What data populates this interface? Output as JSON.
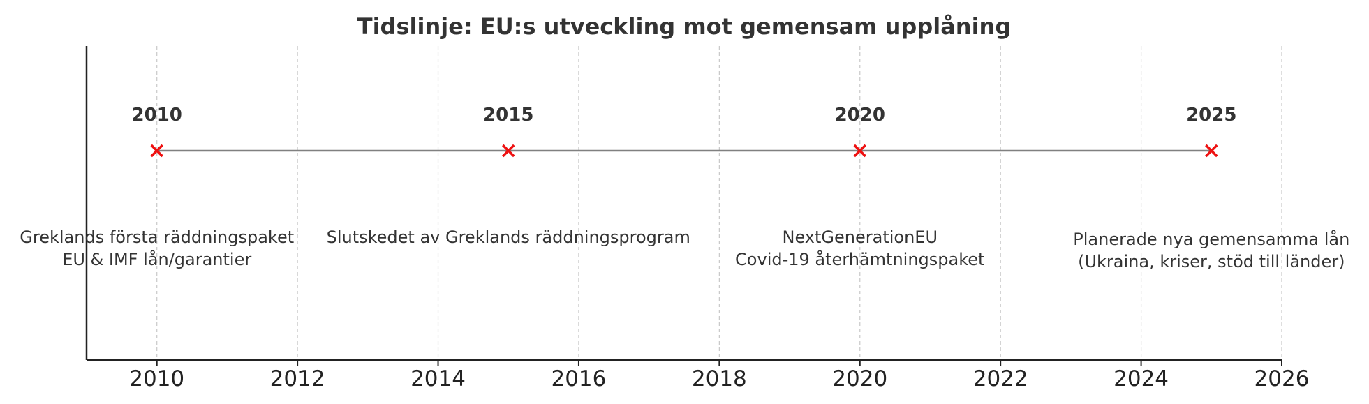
{
  "chart_data": {
    "type": "scatter",
    "title": "Tidslinje: EU:s utveckling mot gemensam upplåning",
    "xlabel": "",
    "ylabel": "",
    "xlim": [
      2009,
      2026
    ],
    "x_ticks": [
      "2010",
      "2012",
      "2014",
      "2016",
      "2018",
      "2020",
      "2022",
      "2024",
      "2026"
    ],
    "grid": "vertical-dashed",
    "line_color": "#808080",
    "marker_color": "#ee1111",
    "events": [
      {
        "year": 2010,
        "year_label": "2010",
        "lines": [
          "Greklands första räddningspaket",
          "EU & IMF lån/garantier"
        ]
      },
      {
        "year": 2015,
        "year_label": "2015",
        "lines": [
          "Slutskedet av Greklands räddningsprogram"
        ]
      },
      {
        "year": 2020,
        "year_label": "2020",
        "lines": [
          "NextGenerationEU",
          "Covid-19 återhämtningspaket"
        ]
      },
      {
        "year": 2025,
        "year_label": "2025",
        "lines": [
          "Planerade nya gemensamma lån",
          "(Ukraina, kriser, stöd till länder)"
        ]
      }
    ]
  }
}
